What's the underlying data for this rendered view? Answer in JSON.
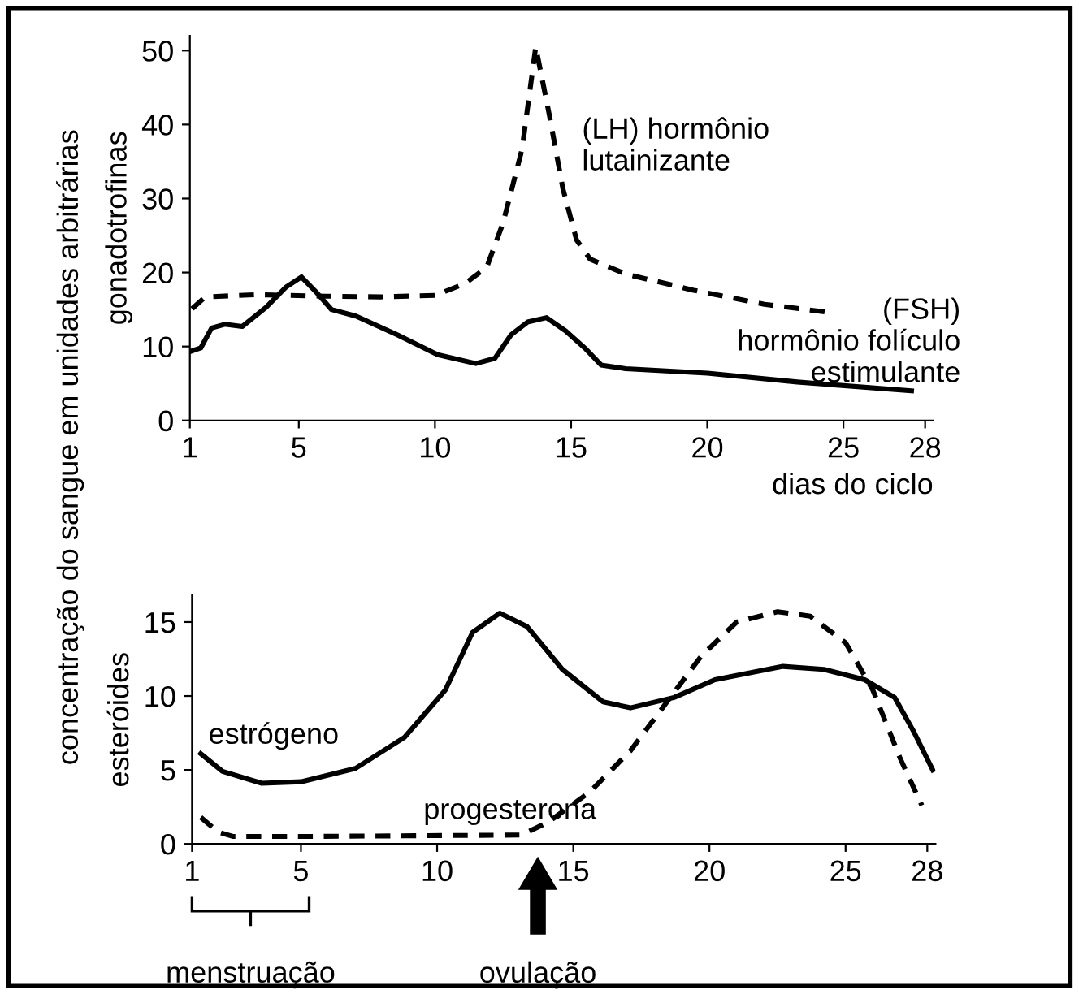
{
  "chart_data": [
    {
      "type": "line",
      "xlabel": "dias do ciclo",
      "ylabel": "gonadotrofinas",
      "annotations": [
        "concentração do sangue em unidades arbitrárias"
      ],
      "xlim": [
        1,
        28.3
      ],
      "ylim": [
        0,
        52
      ],
      "xticks": [
        1,
        5,
        10,
        15,
        20,
        25,
        28
      ],
      "yticks": [
        0,
        10,
        20,
        30,
        40,
        50
      ],
      "grid": false,
      "legend": false,
      "marker": "none",
      "series": [
        {
          "name": "(LH) hormônio\nlutainizante",
          "color": "#000000",
          "line_style": "dashed",
          "x": [
            1.08,
            1.56,
            3.4,
            6,
            8,
            10,
            11.1,
            11.9,
            12.5,
            13.2,
            13.7,
            14.2,
            14.7,
            15.2,
            15.7,
            17.0,
            19.5,
            22.1,
            24.5
          ],
          "values": [
            15.1,
            16.7,
            17,
            16.8,
            16.7,
            16.9,
            18.5,
            20.7,
            26.7,
            36.7,
            50.5,
            41.3,
            31.3,
            24.4,
            21.8,
            19.8,
            17.6,
            15.7,
            14.6
          ]
        },
        {
          "name": "(FSH)\nhormônio folículo\nestimulante",
          "color": "#000000",
          "line_style": "solid",
          "x": [
            1,
            1.4,
            1.8,
            2.28,
            2.92,
            3.8,
            4.52,
            5.1,
            5.6,
            6.2,
            7.1,
            8.6,
            10.1,
            11.5,
            12.2,
            12.8,
            13.4,
            14.1,
            14.8,
            15.5,
            16.1,
            17.0,
            20.0,
            23.3,
            27.5
          ],
          "values": [
            9.3,
            9.8,
            12.5,
            13.0,
            12.7,
            15.3,
            18.0,
            19.4,
            17.5,
            15.0,
            14.1,
            11.6,
            8.9,
            7.7,
            8.4,
            11.6,
            13.3,
            13.9,
            12.1,
            9.8,
            7.5,
            7.0,
            6.4,
            5.2,
            4.0
          ]
        }
      ]
    },
    {
      "type": "line",
      "ylabel": "esteróides",
      "annotations": [
        "menstruação",
        "ovulação"
      ],
      "xlim": [
        1,
        28.3
      ],
      "ylim": [
        0,
        16.8
      ],
      "xticks": [
        1,
        5,
        10,
        15,
        20,
        25,
        28
      ],
      "yticks": [
        0,
        5,
        10,
        15
      ],
      "grid": false,
      "legend": false,
      "marker": "none",
      "series": [
        {
          "name": "estrógeno",
          "color": "#000000",
          "line_style": "solid",
          "x": [
            1.32,
            2.12,
            3.56,
            5.0,
            7.0,
            8.8,
            10.3,
            11.3,
            12.3,
            13.3,
            14.6,
            16.1,
            17.1,
            18.7,
            20.2,
            22.7,
            24.2,
            25.7,
            26.8,
            27.5,
            28.2
          ],
          "values": [
            6.1,
            4.9,
            4.1,
            4.2,
            5.1,
            7.2,
            10.4,
            14.3,
            15.6,
            14.7,
            11.8,
            9.6,
            9.2,
            9.9,
            11.1,
            12.0,
            11.8,
            11.1,
            9.9,
            7.6,
            5.0
          ]
        },
        {
          "name": "progesterona",
          "color": "#000000",
          "line_style": "dashed",
          "x": [
            1.32,
            1.96,
            2.52,
            5.0,
            13.1,
            14.1,
            15.6,
            17.1,
            18.4,
            19.7,
            21.0,
            22.5,
            23.7,
            25.0,
            26.0,
            27.0,
            27.8
          ],
          "values": [
            1.8,
            0.8,
            0.5,
            0.5,
            0.6,
            1.5,
            3.5,
            6.3,
            9.5,
            12.7,
            15.0,
            15.7,
            15.4,
            13.6,
            10.4,
            5.8,
            2.6
          ]
        }
      ]
    }
  ]
}
